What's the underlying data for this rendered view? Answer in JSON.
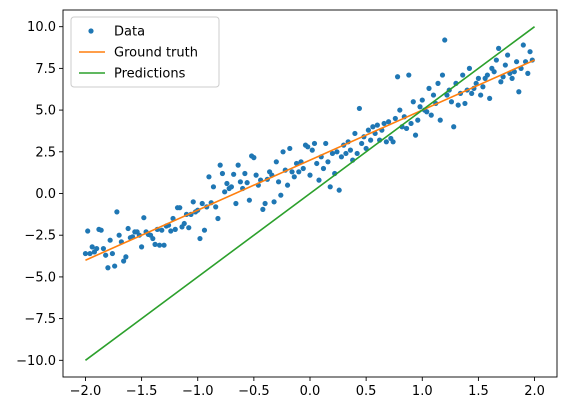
{
  "chart_data": {
    "type": "scatter",
    "title": "",
    "xlabel": "",
    "ylabel": "",
    "xlim": [
      -2.2,
      2.2
    ],
    "ylim": [
      -11.0,
      11.0
    ],
    "xticks": [
      -2.0,
      -1.5,
      -1.0,
      -0.5,
      0.0,
      0.5,
      1.0,
      1.5,
      2.0
    ],
    "xtick_labels": [
      "−2.0",
      "−1.5",
      "−1.0",
      "−0.5",
      "0.0",
      "0.5",
      "1.0",
      "1.5",
      "2.0"
    ],
    "yticks": [
      -10.0,
      -7.5,
      -5.0,
      -2.5,
      0.0,
      2.5,
      5.0,
      7.5,
      10.0
    ],
    "ytick_labels": [
      "−10.0",
      "−7.5",
      "−5.0",
      "−2.5",
      "0.0",
      "2.5",
      "5.0",
      "7.5",
      "10.0"
    ],
    "grid": false,
    "legend_position": "top-left",
    "series": [
      {
        "name": "Data",
        "kind": "scatter",
        "color": "#1f77b4",
        "points": [
          [
            -2.0,
            -3.6
          ],
          [
            -1.98,
            -2.25
          ],
          [
            -1.96,
            -3.6
          ],
          [
            -1.94,
            -3.2
          ],
          [
            -1.92,
            -3.5
          ],
          [
            -1.9,
            -3.3
          ],
          [
            -1.88,
            -2.15
          ],
          [
            -1.86,
            -2.2
          ],
          [
            -1.84,
            -3.3
          ],
          [
            -1.82,
            -3.7
          ],
          [
            -1.8,
            -4.45
          ],
          [
            -1.78,
            -2.8
          ],
          [
            -1.76,
            -3.6
          ],
          [
            -1.74,
            -4.35
          ],
          [
            -1.72,
            -1.1
          ],
          [
            -1.7,
            -2.5
          ],
          [
            -1.68,
            -2.9
          ],
          [
            -1.66,
            -4.05
          ],
          [
            -1.64,
            -3.8
          ],
          [
            -1.62,
            -2.1
          ],
          [
            -1.6,
            -2.65
          ],
          [
            -1.58,
            -2.6
          ],
          [
            -1.56,
            -2.3
          ],
          [
            -1.54,
            -2.3
          ],
          [
            -1.52,
            -2.5
          ],
          [
            -1.5,
            -3.2
          ],
          [
            -1.48,
            -1.45
          ],
          [
            -1.46,
            -2.3
          ],
          [
            -1.44,
            -2.45
          ],
          [
            -1.42,
            -2.5
          ],
          [
            -1.4,
            -2.7
          ],
          [
            -1.38,
            -3.05
          ],
          [
            -1.36,
            -2.15
          ],
          [
            -1.34,
            -3.1
          ],
          [
            -1.32,
            -2.2
          ],
          [
            -1.3,
            -3.1
          ],
          [
            -1.28,
            -1.95
          ],
          [
            -1.26,
            -1.9
          ],
          [
            -1.24,
            -2.25
          ],
          [
            -1.22,
            -1.5
          ],
          [
            -1.2,
            -2.15
          ],
          [
            -1.18,
            -0.85
          ],
          [
            -1.16,
            -0.85
          ],
          [
            -1.14,
            -2.0
          ],
          [
            -1.12,
            -1.8
          ],
          [
            -1.1,
            -1.25
          ],
          [
            -1.08,
            -2.05
          ],
          [
            -1.06,
            -1.25
          ],
          [
            -1.04,
            -0.5
          ],
          [
            -1.02,
            -1.1
          ],
          [
            -1.0,
            -1.0
          ],
          [
            -0.98,
            -2.7
          ],
          [
            -0.96,
            -0.6
          ],
          [
            -0.94,
            -2.2
          ],
          [
            -0.92,
            -0.8
          ],
          [
            -0.9,
            1.0
          ],
          [
            -0.88,
            -0.55
          ],
          [
            -0.86,
            0.4
          ],
          [
            -0.84,
            -0.8
          ],
          [
            -0.82,
            -1.5
          ],
          [
            -0.8,
            1.7
          ],
          [
            -0.78,
            1.2
          ],
          [
            -0.76,
            0.1
          ],
          [
            -0.74,
            0.6
          ],
          [
            -0.72,
            0.3
          ],
          [
            -0.7,
            0.4
          ],
          [
            -0.68,
            1.15
          ],
          [
            -0.66,
            -0.6
          ],
          [
            -0.64,
            1.7
          ],
          [
            -0.62,
            0.7
          ],
          [
            -0.6,
            0.3
          ],
          [
            -0.58,
            1.2
          ],
          [
            -0.56,
            0.65
          ],
          [
            -0.54,
            -0.4
          ],
          [
            -0.52,
            2.25
          ],
          [
            -0.5,
            2.15
          ],
          [
            -0.48,
            1.1
          ],
          [
            -0.46,
            0.5
          ],
          [
            -0.44,
            0.8
          ],
          [
            -0.42,
            -0.95
          ],
          [
            -0.4,
            -0.6
          ],
          [
            -0.38,
            0.85
          ],
          [
            -0.36,
            1.3
          ],
          [
            -0.34,
            1.1
          ],
          [
            -0.32,
            -0.5
          ],
          [
            -0.3,
            1.9
          ],
          [
            -0.28,
            0.7
          ],
          [
            -0.26,
            -0.1
          ],
          [
            -0.24,
            2.5
          ],
          [
            -0.22,
            1.4
          ],
          [
            -0.2,
            0.5
          ],
          [
            -0.18,
            2.7
          ],
          [
            -0.16,
            1.3
          ],
          [
            -0.14,
            1.0
          ],
          [
            -0.12,
            1.8
          ],
          [
            -0.1,
            1.3
          ],
          [
            -0.08,
            1.9
          ],
          [
            -0.06,
            1.5
          ],
          [
            -0.04,
            2.9
          ],
          [
            -0.02,
            2.8
          ],
          [
            0.0,
            1.1
          ],
          [
            0.02,
            2.6
          ],
          [
            0.04,
            3.0
          ],
          [
            0.06,
            1.8
          ],
          [
            0.08,
            0.8
          ],
          [
            0.1,
            2.2
          ],
          [
            0.12,
            1.5
          ],
          [
            0.14,
            3.0
          ],
          [
            0.16,
            1.9
          ],
          [
            0.18,
            0.4
          ],
          [
            0.2,
            2.4
          ],
          [
            0.22,
            1.2
          ],
          [
            0.24,
            2.5
          ],
          [
            0.26,
            0.2
          ],
          [
            0.28,
            2.2
          ],
          [
            0.3,
            2.9
          ],
          [
            0.32,
            2.4
          ],
          [
            0.34,
            3.1
          ],
          [
            0.36,
            2.6
          ],
          [
            0.38,
            2.0
          ],
          [
            0.4,
            3.6
          ],
          [
            0.42,
            2.4
          ],
          [
            0.44,
            5.1
          ],
          [
            0.46,
            3.0
          ],
          [
            0.48,
            3.4
          ],
          [
            0.5,
            2.7
          ],
          [
            0.52,
            3.8
          ],
          [
            0.54,
            3.2
          ],
          [
            0.56,
            4.0
          ],
          [
            0.58,
            3.6
          ],
          [
            0.6,
            4.1
          ],
          [
            0.62,
            3.2
          ],
          [
            0.64,
            3.8
          ],
          [
            0.66,
            4.2
          ],
          [
            0.68,
            3.1
          ],
          [
            0.7,
            4.3
          ],
          [
            0.72,
            3.3
          ],
          [
            0.74,
            3.1
          ],
          [
            0.76,
            4.5
          ],
          [
            0.78,
            7.0
          ],
          [
            0.8,
            5.0
          ],
          [
            0.82,
            4.0
          ],
          [
            0.84,
            4.6
          ],
          [
            0.86,
            3.9
          ],
          [
            0.88,
            7.1
          ],
          [
            0.9,
            4.2
          ],
          [
            0.92,
            5.5
          ],
          [
            0.94,
            3.5
          ],
          [
            0.96,
            4.4
          ],
          [
            0.98,
            5.2
          ],
          [
            1.0,
            5.6
          ],
          [
            1.02,
            5.0
          ],
          [
            1.04,
            4.9
          ],
          [
            1.06,
            6.3
          ],
          [
            1.08,
            4.7
          ],
          [
            1.1,
            5.9
          ],
          [
            1.12,
            5.4
          ],
          [
            1.14,
            6.6
          ],
          [
            1.16,
            4.4
          ],
          [
            1.18,
            7.1
          ],
          [
            1.2,
            9.2
          ],
          [
            1.22,
            5.9
          ],
          [
            1.24,
            6.2
          ],
          [
            1.26,
            5.5
          ],
          [
            1.28,
            4.0
          ],
          [
            1.3,
            6.6
          ],
          [
            1.32,
            5.3
          ],
          [
            1.34,
            6.0
          ],
          [
            1.36,
            7.1
          ],
          [
            1.38,
            5.4
          ],
          [
            1.4,
            6.2
          ],
          [
            1.42,
            7.5
          ],
          [
            1.44,
            6.0
          ],
          [
            1.46,
            6.3
          ],
          [
            1.48,
            6.6
          ],
          [
            1.5,
            6.9
          ],
          [
            1.52,
            5.9
          ],
          [
            1.54,
            6.4
          ],
          [
            1.56,
            6.9
          ],
          [
            1.58,
            7.1
          ],
          [
            1.6,
            5.7
          ],
          [
            1.62,
            7.5
          ],
          [
            1.64,
            7.3
          ],
          [
            1.66,
            8.0
          ],
          [
            1.68,
            8.7
          ],
          [
            1.7,
            6.7
          ],
          [
            1.72,
            7.0
          ],
          [
            1.74,
            7.7
          ],
          [
            1.76,
            8.3
          ],
          [
            1.78,
            7.2
          ],
          [
            1.8,
            6.9
          ],
          [
            1.82,
            7.3
          ],
          [
            1.84,
            7.9
          ],
          [
            1.86,
            6.1
          ],
          [
            1.88,
            7.5
          ],
          [
            1.9,
            8.9
          ],
          [
            1.92,
            7.9
          ],
          [
            1.94,
            7.2
          ],
          [
            1.96,
            8.5
          ],
          [
            1.98,
            8.0
          ]
        ]
      },
      {
        "name": "Ground truth",
        "kind": "line",
        "color": "#ff7f0e",
        "points": [
          [
            -2.0,
            -4.0
          ],
          [
            2.0,
            8.0
          ]
        ]
      },
      {
        "name": "Predictions",
        "kind": "line",
        "color": "#2ca02c",
        "points": [
          [
            -2.0,
            -10.0
          ],
          [
            2.0,
            10.0
          ]
        ]
      }
    ]
  }
}
